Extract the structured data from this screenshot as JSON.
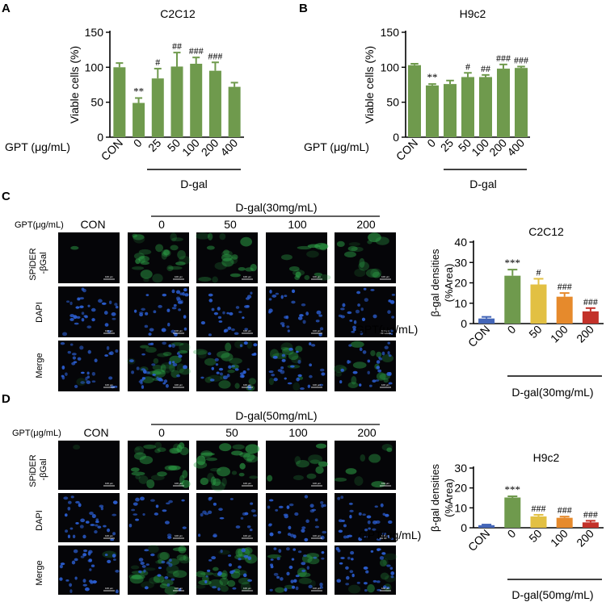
{
  "colors": {
    "green": "#6f9a4d",
    "blue": "#4466b8",
    "yellow": "#e2c043",
    "orange": "#e68a2c",
    "red": "#c3322a",
    "micro_bg": "#050508",
    "micro_green": "#2fa94a",
    "micro_blue": "#2c60d6"
  },
  "panels": {
    "A": {
      "letter": "A",
      "chart_index": 0,
      "xgroup_label": "GPT (μg/mL)",
      "dgal_label": "D-gal"
    },
    "B": {
      "letter": "B",
      "chart_index": 1,
      "xgroup_label": "GPT (μg/mL)",
      "dgal_label": "D-gal"
    },
    "C": {
      "letter": "C",
      "gpt_label": "GPT(μg/mL)",
      "dgal_header": "D-gal(30mg/mL)",
      "columns": [
        "CON",
        "0",
        "50",
        "100",
        "200"
      ],
      "rows": [
        "SPiDER\n-βGal",
        "DAPI",
        "Merge"
      ],
      "row_line1": "SPiDER",
      "row_line2": "-βGal",
      "row_dapi": "DAPI",
      "row_merge": "Merge",
      "scale_text": "100 μm",
      "chart_index": 2,
      "xgroup_label": "GPT(μg/mL)",
      "dgal_label": "D-gal(30mg/mL)"
    },
    "D": {
      "letter": "D",
      "gpt_label": "GPT(μg/mL)",
      "dgal_header": "D-gal(50mg/mL)",
      "columns": [
        "CON",
        "0",
        "50",
        "100",
        "200"
      ],
      "row_line1": "SPiDER",
      "row_line2": "-βGal",
      "row_dapi": "DAPI",
      "row_merge": "Merge",
      "scale_text": "100 μm",
      "chart_index": 3,
      "xgroup_label": "GPT(μg/mL)",
      "dgal_label": "D-gal(50mg/mL)"
    }
  },
  "chart_data": [
    {
      "type": "bar",
      "title": "C2C12",
      "ylabel": "Viable cells (%)",
      "ylim": [
        0,
        150
      ],
      "yticks": [
        0,
        50,
        100,
        150
      ],
      "categories": [
        "CON",
        "0",
        "25",
        "50",
        "100",
        "200",
        "400"
      ],
      "values": [
        100,
        49,
        84,
        101,
        105,
        95,
        72
      ],
      "errors": [
        6,
        7,
        14,
        20,
        9,
        12,
        6
      ],
      "annotations": [
        "",
        "**",
        "#",
        "##",
        "###",
        "###",
        ""
      ],
      "colors": [
        "#6f9a4d",
        "#6f9a4d",
        "#6f9a4d",
        "#6f9a4d",
        "#6f9a4d",
        "#6f9a4d",
        "#6f9a4d"
      ]
    },
    {
      "type": "bar",
      "title": "H9c2",
      "ylabel": "Viable cells (%)",
      "ylim": [
        0,
        150
      ],
      "yticks": [
        0,
        50,
        100,
        150
      ],
      "categories": [
        "CON",
        "0",
        "25",
        "50",
        "100",
        "200",
        "400"
      ],
      "values": [
        103,
        74,
        76,
        86,
        86,
        98,
        99
      ],
      "errors": [
        2,
        2,
        5,
        6,
        3,
        6,
        2
      ],
      "annotations": [
        "",
        "**",
        "",
        "#",
        "##",
        "###",
        "###"
      ],
      "colors": [
        "#6f9a4d",
        "#6f9a4d",
        "#6f9a4d",
        "#6f9a4d",
        "#6f9a4d",
        "#6f9a4d",
        "#6f9a4d"
      ]
    },
    {
      "type": "bar",
      "title": "C2C12",
      "ylabel": "β-gal densities (%Area)",
      "ylim": [
        0,
        40
      ],
      "yticks": [
        0,
        10,
        20,
        30,
        40
      ],
      "categories": [
        "CON",
        "0",
        "50",
        "100",
        "200"
      ],
      "values": [
        2.5,
        23.5,
        19.2,
        13.2,
        6.0
      ],
      "errors": [
        0.8,
        3.0,
        2.8,
        1.8,
        1.6
      ],
      "annotations": [
        "",
        "***",
        "#",
        "###",
        "###"
      ],
      "colors": [
        "#4466b8",
        "#6f9a4d",
        "#e2c043",
        "#e68a2c",
        "#c3322a"
      ]
    },
    {
      "type": "bar",
      "title": "H9c2",
      "ylabel": "β-gal densities (%Area)",
      "ylim": [
        0,
        30
      ],
      "yticks": [
        0,
        10,
        20,
        30
      ],
      "categories": [
        "CON",
        "0",
        "50",
        "100",
        "200"
      ],
      "values": [
        1.3,
        15.2,
        5.7,
        5.0,
        2.7
      ],
      "errors": [
        0.3,
        0.6,
        0.8,
        0.6,
        0.8
      ],
      "annotations": [
        "",
        "***",
        "###",
        "###",
        "###"
      ],
      "colors": [
        "#4466b8",
        "#6f9a4d",
        "#e2c043",
        "#e68a2c",
        "#c3322a"
      ]
    }
  ]
}
